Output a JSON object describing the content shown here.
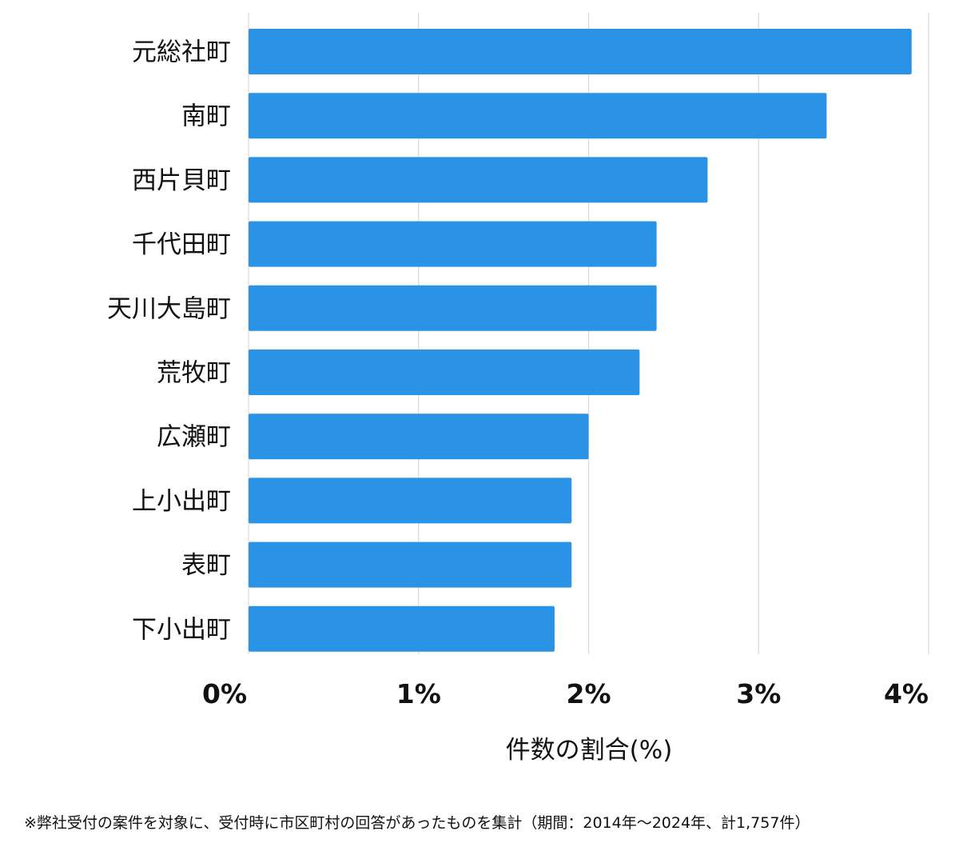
{
  "chart_data": {
    "type": "bar",
    "orientation": "horizontal",
    "categories": [
      "元総社町",
      "南町",
      "西片貝町",
      "千代田町",
      "天川大島町",
      "荒牧町",
      "広瀬町",
      "上小出町",
      "表町",
      "下小出町"
    ],
    "values": [
      3.9,
      3.4,
      2.7,
      2.4,
      2.4,
      2.3,
      2.0,
      1.9,
      1.9,
      1.8
    ],
    "xlim": [
      0,
      4
    ],
    "xticks": [
      0,
      1,
      2,
      3,
      4
    ],
    "xtick_labels": [
      "0%",
      "1%",
      "2%",
      "3%",
      "4%"
    ],
    "xlabel": "件数の割合(%)",
    "ylabel": "",
    "grid": true,
    "bar_color": "#2a93e6",
    "grid_color": "#d9d9d9"
  },
  "footnote": "※弊社受付の案件を対象に、受付時に市区町村の回答があったものを集計（期間：2014年～2024年、計1,757件）"
}
